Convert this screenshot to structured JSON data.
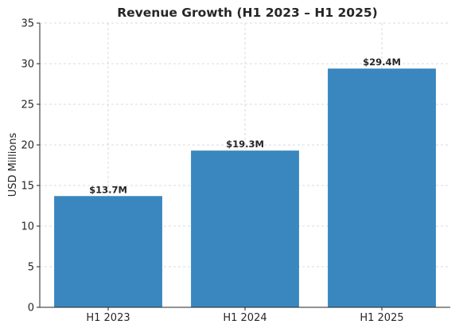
{
  "chart_data": {
    "type": "bar",
    "title": "Revenue Growth (H1 2023 – H1 2025)",
    "xlabel": "",
    "ylabel": "USD Millions",
    "categories": [
      "H1 2023",
      "H1 2024",
      "H1 2025"
    ],
    "values": [
      13.7,
      19.3,
      29.4
    ],
    "data_labels": [
      "$13.7M",
      "$19.3M",
      "$29.4M"
    ],
    "ylim": [
      0,
      35
    ],
    "yticks": [
      0,
      5,
      10,
      15,
      20,
      25,
      30,
      35
    ],
    "grid": true,
    "bar_color": "#3a87c0"
  }
}
